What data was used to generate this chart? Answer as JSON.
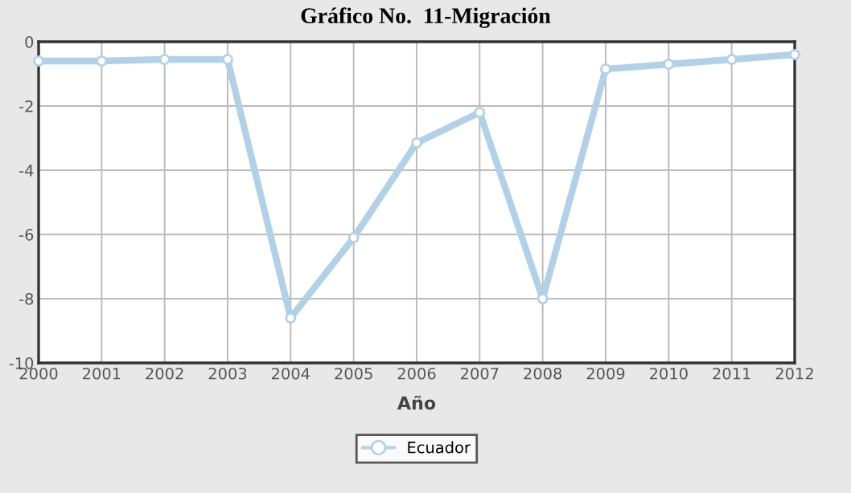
{
  "chart_data": {
    "type": "line",
    "title": "Gráfico No.  11-Migración",
    "xlabel": "Año",
    "x": [
      2000,
      2001,
      2002,
      2003,
      2004,
      2005,
      2006,
      2007,
      2008,
      2009,
      2010,
      2011,
      2012
    ],
    "series": [
      {
        "name": "Ecuador",
        "color": "#b3d1e6",
        "values": [
          -0.6,
          -0.6,
          -0.55,
          -0.55,
          -8.6,
          -6.1,
          -3.15,
          -2.2,
          -8.0,
          -0.85,
          -0.7,
          -0.55,
          -0.4
        ]
      }
    ],
    "xlim": [
      2000,
      2012
    ],
    "xticks": [
      2000,
      2001,
      2002,
      2003,
      2004,
      2005,
      2006,
      2007,
      2008,
      2009,
      2010,
      2011,
      2012
    ],
    "ylim": [
      -10,
      0
    ],
    "yticks": [
      -10,
      -8,
      -6,
      -4,
      -2,
      0
    ],
    "grid": true,
    "legend": "bottom",
    "marker": "circle"
  }
}
